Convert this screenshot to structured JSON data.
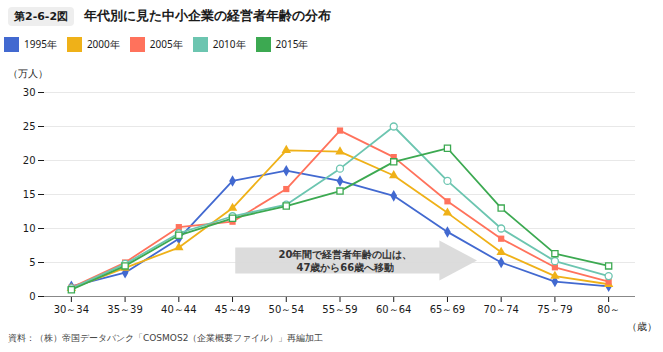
{
  "chart_data": {
    "type": "line",
    "title": "年代別に見た中小企業の経営者年齢の分布",
    "xlabel": "（歳）",
    "ylabel": "（万人）",
    "categories": [
      "30～34",
      "35～39",
      "40～44",
      "45～49",
      "50～54",
      "55～59",
      "60～64",
      "65～69",
      "70～74",
      "75～79",
      "80～"
    ],
    "series": [
      {
        "name": "1995年",
        "marker": "diamond",
        "values": [
          1.5,
          3.5,
          8.5,
          17.0,
          18.5,
          17.0,
          14.8,
          9.5,
          5.0,
          2.2,
          1.5
        ]
      },
      {
        "name": "2000年",
        "marker": "triangle",
        "values": [
          1.2,
          4.2,
          7.2,
          13.0,
          21.5,
          21.3,
          17.8,
          12.3,
          6.5,
          3.0,
          1.8
        ]
      },
      {
        "name": "2005年",
        "marker": "square",
        "values": [
          1.3,
          5.0,
          10.2,
          11.0,
          15.8,
          24.4,
          20.5,
          14.0,
          8.5,
          4.3,
          2.2
        ]
      },
      {
        "name": "2010年",
        "marker": "open-circle",
        "values": [
          1.2,
          4.8,
          9.3,
          11.8,
          13.5,
          18.8,
          25.0,
          17.0,
          10.0,
          5.2,
          3.0
        ]
      },
      {
        "name": "2015年",
        "marker": "open-square",
        "values": [
          1.0,
          4.5,
          9.0,
          11.5,
          13.3,
          15.5,
          19.8,
          21.8,
          13.0,
          6.3,
          4.5
        ]
      }
    ],
    "ylim": [
      0,
      30
    ],
    "yticks": [
      0,
      5,
      10,
      15,
      20,
      25,
      30
    ],
    "grid": true,
    "legend": "upper left",
    "annotations": [
      "第2-6-2図",
      "20年間で経営者年齢の山は、\n47歳から66歳へ移動",
      "資料：（株）帝国データバンク「COSMOS2（企業概要ファイル）」再編加工"
    ]
  }
}
